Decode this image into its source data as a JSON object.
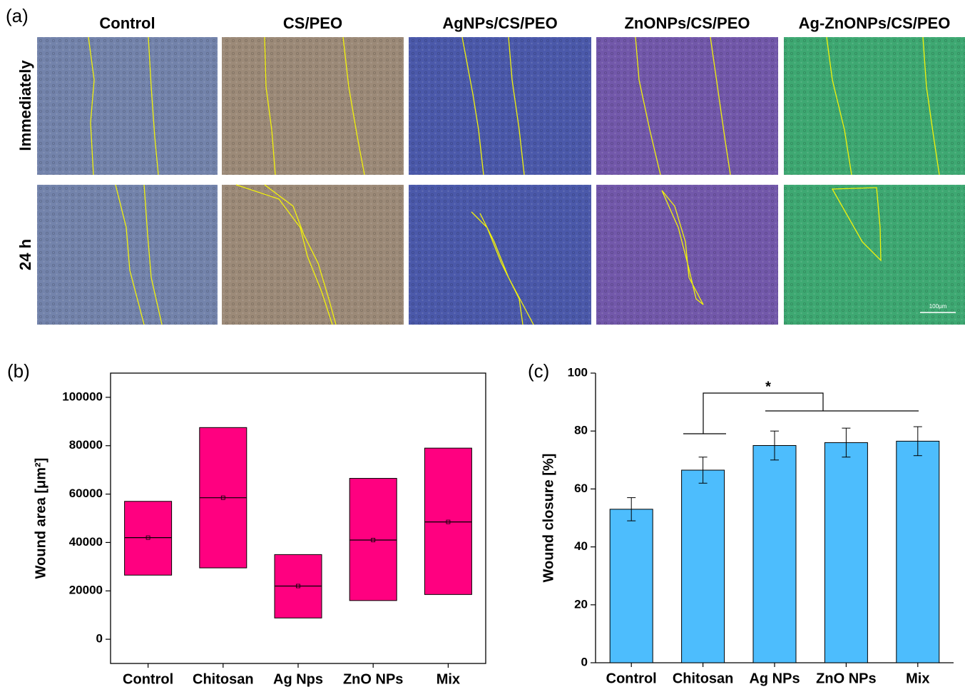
{
  "panel_a": {
    "label": "(a)",
    "columns": [
      "Control",
      "CS/PEO",
      "AgNPs/CS/PEO",
      "ZnONPs/CS/PEO",
      "Ag-ZnONPs/CS/PEO"
    ],
    "rows": [
      "Immediately",
      "24 h"
    ],
    "scale_bar": "100µm"
  },
  "chart_data": [
    {
      "type": "box",
      "label": "(b)",
      "y_label": "Wound area [μm²]",
      "categories": [
        "Control",
        "Chitosan",
        "Ag Nps",
        "ZnO NPs",
        "Mix"
      ],
      "low": [
        26500,
        29500,
        8800,
        16000,
        18500
      ],
      "high": [
        57000,
        87500,
        35000,
        66500,
        79000
      ],
      "median": [
        42000,
        58500,
        22000,
        41000,
        48500
      ],
      "mean": [
        42000,
        58500,
        22000,
        41000,
        48500
      ],
      "color": "#ff0080",
      "ylim": [
        -10000,
        110000
      ],
      "yticks": [
        0,
        20000,
        40000,
        60000,
        80000,
        100000
      ]
    },
    {
      "type": "bar",
      "label": "(c)",
      "y_label": "Wound closure [%]",
      "categories": [
        "Control",
        "Chitosan",
        "Ag NPs",
        "ZnO NPs",
        "Mix"
      ],
      "values": [
        53,
        66.5,
        75,
        76,
        76.5
      ],
      "errors": [
        4,
        4.5,
        5,
        5,
        5
      ],
      "color": "#4dbdfd",
      "ylim": [
        0,
        100
      ],
      "yticks": [
        0,
        20,
        40,
        60,
        80,
        100
      ],
      "annotation": "*"
    }
  ]
}
